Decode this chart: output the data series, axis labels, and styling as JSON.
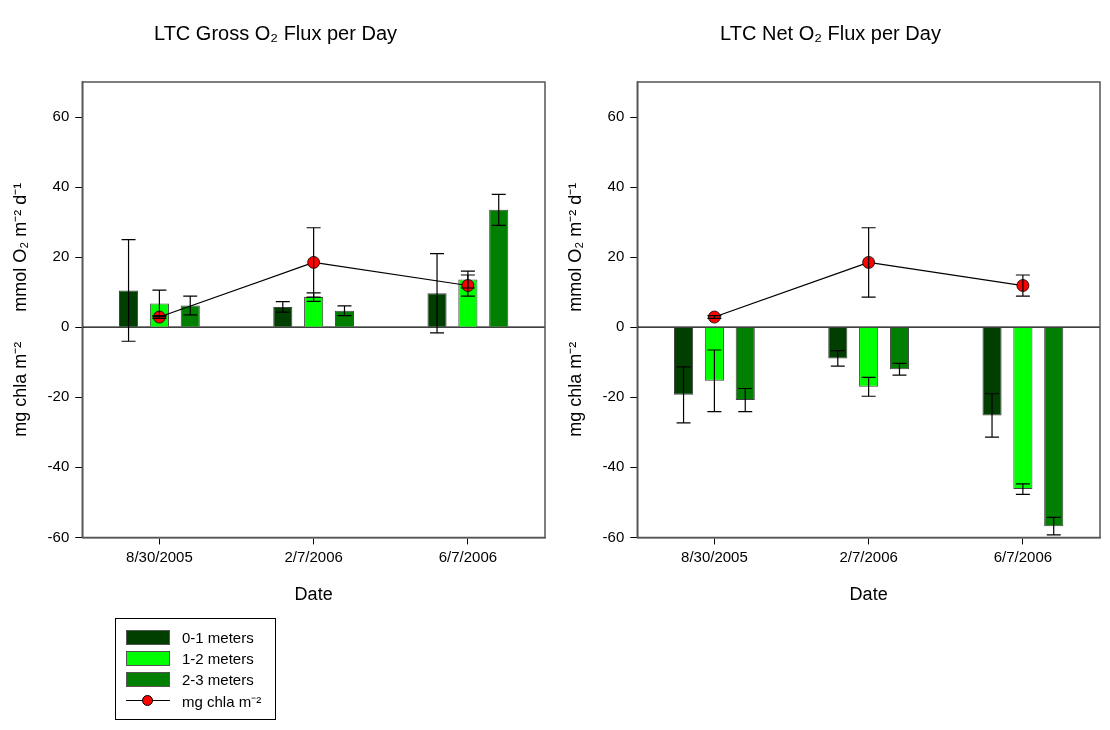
{
  "chart_data": [
    {
      "type": "bar",
      "title": "LTC Gross O₂ Flux per Day",
      "xlabel": "Date",
      "ylabel": "mg chla m⁻²      mmol O₂ m⁻² d⁻¹",
      "categories": [
        "8/30/2005",
        "2/7/2006",
        "6/7/2006"
      ],
      "ylim": [
        -60,
        70
      ],
      "yticks": [
        -60,
        -40,
        -20,
        0,
        20,
        40,
        60
      ],
      "grid": false,
      "legend": "bottom left",
      "ref_lines": [
        {
          "axis": "y",
          "value": 0
        }
      ],
      "series": [
        {
          "name": "0-1 meters",
          "color": "#003f00",
          "values": [
            10.5,
            5.8,
            9.7
          ],
          "errors": [
            14.5,
            1.5,
            11.3
          ]
        },
        {
          "name": "1-2 meters",
          "color": "#00ff00",
          "values": [
            6.8,
            8.6,
            13.6
          ],
          "errors": [
            3.8,
            1.2,
            2.4
          ]
        },
        {
          "name": "2-3 meters",
          "color": "#007f00",
          "values": [
            6.2,
            4.7,
            33.5
          ],
          "errors": [
            2.7,
            1.4,
            4.4
          ]
        },
        {
          "name": "mg chla m⁻²",
          "type": "line",
          "color": "#ff0000",
          "marker": "circle",
          "line_style": "solid",
          "values": [
            2.9,
            18.5,
            11.9
          ],
          "errors": [
            0.4,
            9.9,
            3
          ]
        }
      ]
    },
    {
      "type": "bar",
      "title": "LTC Net O₂ Flux per Day",
      "xlabel": "Date",
      "ylabel": "mg chla m⁻²      mmol O₂ m⁻² d⁻¹",
      "categories": [
        "8/30/2005",
        "2/7/2006",
        "6/7/2006"
      ],
      "ylim": [
        -60,
        70
      ],
      "yticks": [
        -60,
        -40,
        -20,
        0,
        20,
        40,
        60
      ],
      "grid": false,
      "ref_lines": [
        {
          "axis": "y",
          "value": 0
        }
      ],
      "series": [
        {
          "color": "#003f00",
          "values": [
            -19.3,
            -8.9,
            -25.2
          ],
          "errors": [
            8,
            2.2,
            6.2
          ]
        },
        {
          "color": "#00ff00",
          "values": [
            -15.3,
            -17,
            -46.2
          ],
          "errors": [
            8.8,
            2.7,
            1.5
          ]
        },
        {
          "color": "#007f00",
          "values": [
            -20.8,
            -12,
            -56.8
          ],
          "errors": [
            3.3,
            1.7,
            2.5
          ]
        },
        {
          "type": "line",
          "color": "#ff0000",
          "marker": "circle",
          "line_style": "solid",
          "values": [
            2.9,
            18.5,
            11.9
          ],
          "errors": [
            0.4,
            9.9,
            3
          ]
        }
      ]
    }
  ]
}
